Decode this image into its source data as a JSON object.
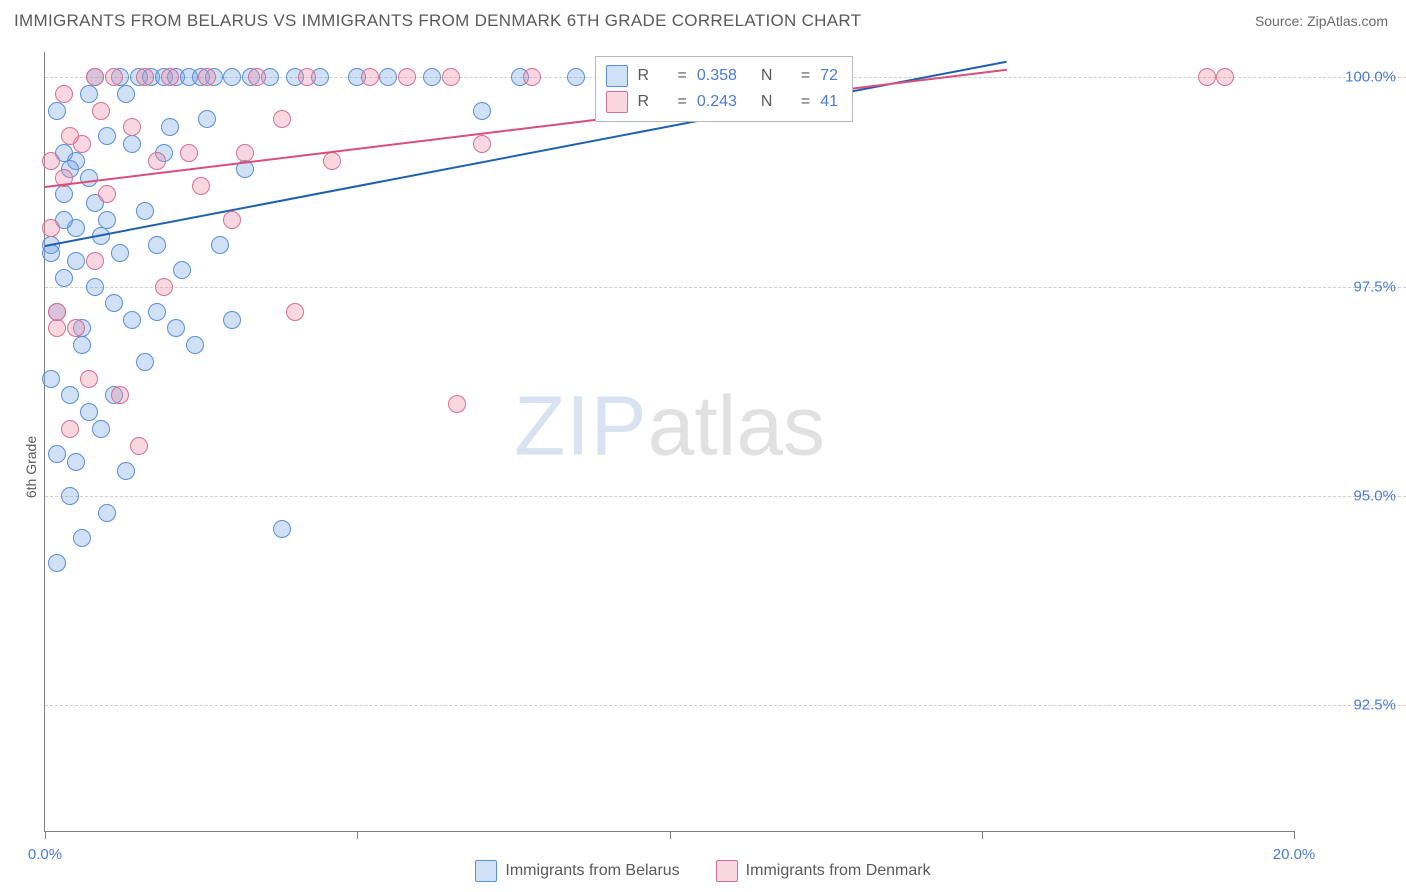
{
  "header": {
    "title": "IMMIGRANTS FROM BELARUS VS IMMIGRANTS FROM DENMARK 6TH GRADE CORRELATION CHART",
    "source": "Source: ZipAtlas.com"
  },
  "ylabel": "6th Grade",
  "watermark": {
    "zip": "ZIP",
    "atlas": "atlas"
  },
  "chart": {
    "type": "scatter",
    "xlim": [
      0,
      20
    ],
    "ylim": [
      91,
      100.3
    ],
    "x_ticks": [
      0,
      5,
      10,
      15,
      20
    ],
    "x_tick_labels": [
      "0.0%",
      "",
      "",
      "",
      "20.0%"
    ],
    "y_ticks": [
      92.5,
      95.0,
      97.5,
      100.0
    ],
    "y_tick_labels": [
      "92.5%",
      "95.0%",
      "97.5%",
      "100.0%"
    ],
    "grid_color": "#cfcfcf",
    "background_color": "#ffffff",
    "marker_radius": 9,
    "marker_stroke_width": 1.5,
    "series": [
      {
        "name": "Immigrants from Belarus",
        "fill": "rgba(120,165,225,0.35)",
        "stroke": "#5b8fd6",
        "trend_color": "#1f5fb0",
        "r_value": "0.358",
        "n_value": "72",
        "trend": {
          "x1": 0,
          "y1": 98.0,
          "x2": 15.4,
          "y2": 100.2
        },
        "points": [
          [
            0.1,
            98.0
          ],
          [
            0.2,
            97.2
          ],
          [
            0.1,
            96.4
          ],
          [
            0.3,
            98.6
          ],
          [
            0.2,
            99.6
          ],
          [
            0.5,
            98.2
          ],
          [
            0.6,
            97.0
          ],
          [
            0.5,
            99.0
          ],
          [
            0.7,
            98.8
          ],
          [
            0.3,
            97.6
          ],
          [
            0.8,
            100.0
          ],
          [
            1.0,
            99.3
          ],
          [
            1.2,
            100.0
          ],
          [
            0.4,
            96.2
          ],
          [
            0.2,
            95.5
          ],
          [
            0.9,
            98.1
          ],
          [
            1.1,
            97.3
          ],
          [
            1.3,
            99.8
          ],
          [
            1.5,
            100.0
          ],
          [
            1.7,
            100.0
          ],
          [
            0.6,
            96.8
          ],
          [
            0.8,
            97.5
          ],
          [
            0.1,
            97.9
          ],
          [
            0.4,
            98.9
          ],
          [
            0.3,
            99.1
          ],
          [
            1.0,
            98.3
          ],
          [
            1.9,
            100.0
          ],
          [
            2.1,
            100.0
          ],
          [
            2.3,
            100.0
          ],
          [
            2.5,
            100.0
          ],
          [
            0.7,
            96.0
          ],
          [
            0.5,
            95.4
          ],
          [
            0.9,
            95.8
          ],
          [
            0.2,
            94.2
          ],
          [
            1.0,
            94.8
          ],
          [
            1.4,
            97.1
          ],
          [
            1.6,
            98.4
          ],
          [
            1.2,
            97.9
          ],
          [
            1.8,
            98.0
          ],
          [
            2.0,
            99.4
          ],
          [
            2.7,
            100.0
          ],
          [
            3.0,
            100.0
          ],
          [
            3.3,
            100.0
          ],
          [
            3.6,
            100.0
          ],
          [
            1.6,
            96.6
          ],
          [
            2.2,
            97.7
          ],
          [
            2.4,
            96.8
          ],
          [
            2.8,
            98.0
          ],
          [
            3.2,
            98.9
          ],
          [
            0.4,
            95.0
          ],
          [
            1.3,
            95.3
          ],
          [
            1.8,
            97.2
          ],
          [
            2.1,
            97.0
          ],
          [
            4.0,
            100.0
          ],
          [
            4.4,
            100.0
          ],
          [
            5.0,
            100.0
          ],
          [
            5.5,
            100.0
          ],
          [
            6.2,
            100.0
          ],
          [
            0.6,
            94.5
          ],
          [
            3.0,
            97.1
          ],
          [
            3.8,
            94.6
          ],
          [
            7.0,
            99.6
          ],
          [
            7.6,
            100.0
          ],
          [
            1.4,
            99.2
          ],
          [
            2.6,
            99.5
          ],
          [
            0.3,
            98.3
          ],
          [
            8.5,
            100.0
          ],
          [
            0.7,
            99.8
          ],
          [
            1.1,
            96.2
          ],
          [
            1.9,
            99.1
          ],
          [
            0.5,
            97.8
          ],
          [
            0.8,
            98.5
          ]
        ]
      },
      {
        "name": "Immigrants from Denmark",
        "fill": "rgba(235,140,170,0.35)",
        "stroke": "#d47093",
        "trend_color": "#d94f7a",
        "r_value": "0.243",
        "n_value": "41",
        "trend": {
          "x1": 0,
          "y1": 98.7,
          "x2": 15.4,
          "y2": 100.1
        },
        "points": [
          [
            0.1,
            98.2
          ],
          [
            0.2,
            97.0
          ],
          [
            0.1,
            99.0
          ],
          [
            0.3,
            98.8
          ],
          [
            0.3,
            99.8
          ],
          [
            0.6,
            99.2
          ],
          [
            0.8,
            97.8
          ],
          [
            0.8,
            100.0
          ],
          [
            1.0,
            98.6
          ],
          [
            1.1,
            100.0
          ],
          [
            1.4,
            99.4
          ],
          [
            1.6,
            100.0
          ],
          [
            1.8,
            99.0
          ],
          [
            0.5,
            97.0
          ],
          [
            0.7,
            96.4
          ],
          [
            0.4,
            95.8
          ],
          [
            2.0,
            100.0
          ],
          [
            2.3,
            99.1
          ],
          [
            2.6,
            100.0
          ],
          [
            3.0,
            98.3
          ],
          [
            3.4,
            100.0
          ],
          [
            3.8,
            99.5
          ],
          [
            4.2,
            100.0
          ],
          [
            4.6,
            99.0
          ],
          [
            5.2,
            100.0
          ],
          [
            1.2,
            96.2
          ],
          [
            1.9,
            97.5
          ],
          [
            2.5,
            98.7
          ],
          [
            0.2,
            97.2
          ],
          [
            5.8,
            100.0
          ],
          [
            6.5,
            100.0
          ],
          [
            1.5,
            95.6
          ],
          [
            4.0,
            97.2
          ],
          [
            7.0,
            99.2
          ],
          [
            7.8,
            100.0
          ],
          [
            0.9,
            99.6
          ],
          [
            3.2,
            99.1
          ],
          [
            6.6,
            96.1
          ],
          [
            18.6,
            100.0
          ],
          [
            18.9,
            100.0
          ],
          [
            0.4,
            99.3
          ]
        ]
      }
    ]
  },
  "legend": {
    "r_label": "R",
    "eq": " = ",
    "n_label": "N"
  },
  "bottom_legend": {
    "series1": "Immigrants from Belarus",
    "series2": "Immigrants from Denmark"
  }
}
